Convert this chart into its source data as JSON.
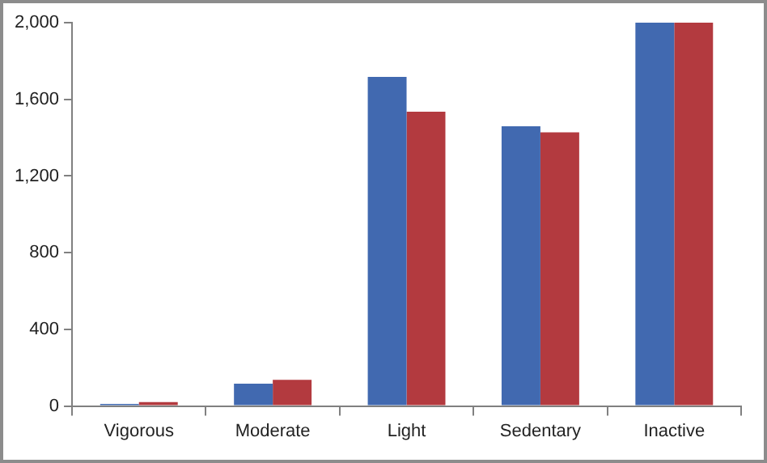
{
  "chart_data": {
    "type": "bar",
    "categories": [
      "Vigorous",
      "Moderate",
      "Light",
      "Sedentary",
      "Inactive"
    ],
    "series": [
      {
        "color": "#4169b0",
        "values": [
          11,
          117,
          1717,
          1459,
          2000
        ]
      },
      {
        "color": "#b33a3f",
        "values": [
          20,
          137,
          1536,
          1428,
          2000
        ]
      }
    ],
    "ylim": [
      0,
      2000
    ],
    "yticks": [
      {
        "value": 0,
        "label": "0"
      },
      {
        "value": 400,
        "label": "400"
      },
      {
        "value": 800,
        "label": "800"
      },
      {
        "value": 1200,
        "label": "1,200"
      },
      {
        "value": 1600,
        "label": "1,600"
      },
      {
        "value": 2000,
        "label": "2,000"
      }
    ],
    "grid": false,
    "legend": false
  }
}
